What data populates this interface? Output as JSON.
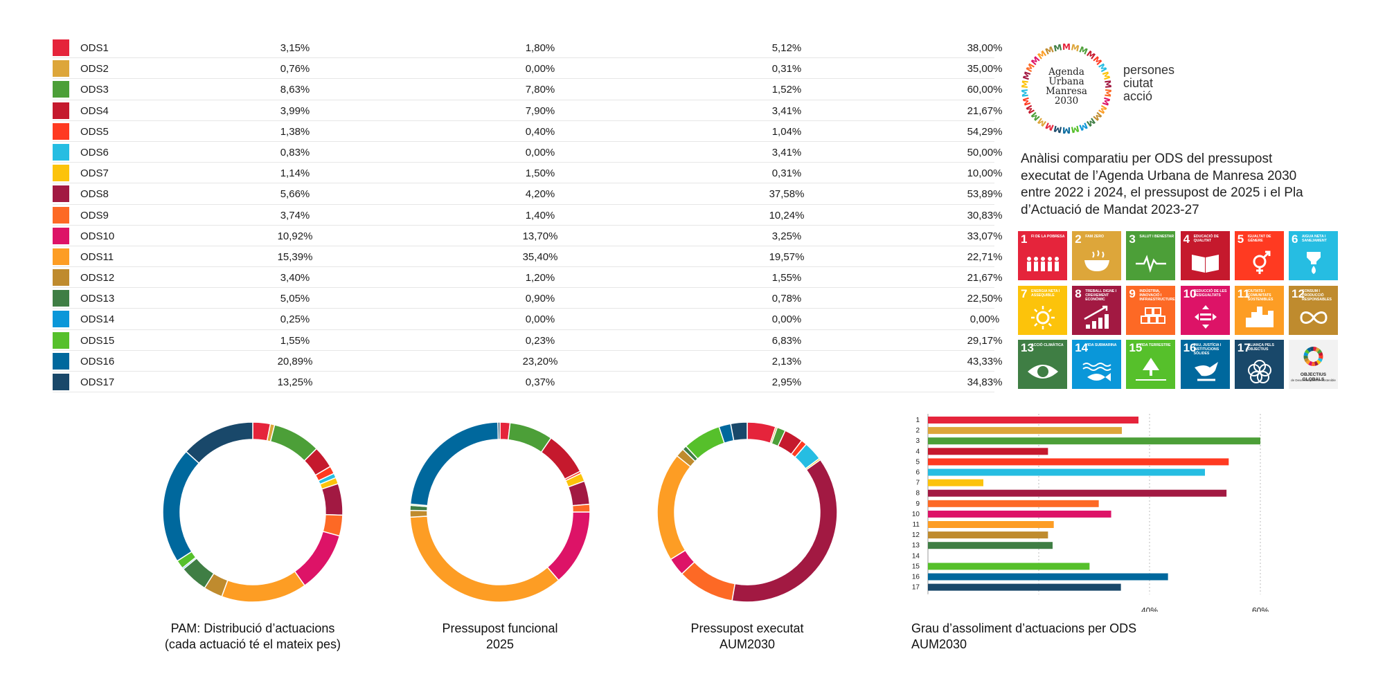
{
  "ods": [
    {
      "id": "ODS1",
      "color": "#E5243B",
      "pam": "3,15%",
      "funcional": "1,80%",
      "executat": "5,12%",
      "grau": "38,00%"
    },
    {
      "id": "ODS2",
      "color": "#DDA63A",
      "pam": "0,76%",
      "funcional": "0,00%",
      "executat": "0,31%",
      "grau": "35,00%"
    },
    {
      "id": "ODS3",
      "color": "#4C9F38",
      "pam": "8,63%",
      "funcional": "7,80%",
      "executat": "1,52%",
      "grau": "60,00%"
    },
    {
      "id": "ODS4",
      "color": "#C5192D",
      "pam": "3,99%",
      "funcional": "7,90%",
      "executat": "3,41%",
      "grau": "21,67%"
    },
    {
      "id": "ODS5",
      "color": "#FF3A21",
      "pam": "1,38%",
      "funcional": "0,40%",
      "executat": "1,04%",
      "grau": "54,29%"
    },
    {
      "id": "ODS6",
      "color": "#26BDE2",
      "pam": "0,83%",
      "funcional": "0,00%",
      "executat": "3,41%",
      "grau": "50,00%"
    },
    {
      "id": "ODS7",
      "color": "#FCC30B",
      "pam": "1,14%",
      "funcional": "1,50%",
      "executat": "0,31%",
      "grau": "10,00%"
    },
    {
      "id": "ODS8",
      "color": "#A21942",
      "pam": "5,66%",
      "funcional": "4,20%",
      "executat": "37,58%",
      "grau": "53,89%"
    },
    {
      "id": "ODS9",
      "color": "#FD6925",
      "pam": "3,74%",
      "funcional": "1,40%",
      "executat": "10,24%",
      "grau": "30,83%"
    },
    {
      "id": "ODS10",
      "color": "#DD1367",
      "pam": "10,92%",
      "funcional": "13,70%",
      "executat": "3,25%",
      "grau": "33,07%"
    },
    {
      "id": "ODS11",
      "color": "#FD9D24",
      "pam": "15,39%",
      "funcional": "35,40%",
      "executat": "19,57%",
      "grau": "22,71%"
    },
    {
      "id": "ODS12",
      "color": "#BF8B2E",
      "pam": "3,40%",
      "funcional": "1,20%",
      "executat": "1,55%",
      "grau": "21,67%"
    },
    {
      "id": "ODS13",
      "color": "#3F7E44",
      "pam": "5,05%",
      "funcional": "0,90%",
      "executat": "0,78%",
      "grau": "22,50%"
    },
    {
      "id": "ODS14",
      "color": "#0A97D9",
      "pam": "0,25%",
      "funcional": "0,00%",
      "executat": "0,00%",
      "grau": "0,00%"
    },
    {
      "id": "ODS15",
      "color": "#56C02B",
      "pam": "1,55%",
      "funcional": "0,23%",
      "executat": "6,83%",
      "grau": "29,17%"
    },
    {
      "id": "ODS16",
      "color": "#00689D",
      "pam": "20,89%",
      "funcional": "23,20%",
      "executat": "2,13%",
      "grau": "43,33%"
    },
    {
      "id": "ODS17",
      "color": "#19486A",
      "pam": "13,25%",
      "funcional": "0,37%",
      "executat": "2,95%",
      "grau": "34,83%"
    }
  ],
  "logo": {
    "lines": [
      "Agenda",
      "Urbana",
      "Manresa",
      "2030"
    ],
    "ring_letter": "M"
  },
  "tagline": [
    "persones",
    "ciutat",
    "acció"
  ],
  "description": "Anàlisi comparatiu per ODS del pressupost executat de l’Agenda Urbana de Manresa 2030 entre 2022 i 2024, el pressupost de 2025 i el Pla d’Actuació de Mandat 2023-27",
  "sdg_tiles": [
    {
      "n": "1",
      "label": "Fi de la pobresa",
      "color": "#E5243B",
      "icon": "people-icon"
    },
    {
      "n": "2",
      "label": "Fam zero",
      "color": "#DDA63A",
      "icon": "bowl-icon"
    },
    {
      "n": "3",
      "label": "Salut i benestar",
      "color": "#4C9F38",
      "icon": "heartbeat-icon"
    },
    {
      "n": "4",
      "label": "Educació de qualitat",
      "color": "#C5192D",
      "icon": "book-icon"
    },
    {
      "n": "5",
      "label": "Igualtat de gènere",
      "color": "#FF3A21",
      "icon": "gender-icon"
    },
    {
      "n": "6",
      "label": "Aigua neta i sanejament",
      "color": "#26BDE2",
      "icon": "water-drop-icon"
    },
    {
      "n": "7",
      "label": "Energia neta i assequible",
      "color": "#FCC30B",
      "icon": "sun-icon"
    },
    {
      "n": "8",
      "label": "Treball digne i creixement econòmic",
      "color": "#A21942",
      "icon": "growth-chart-icon"
    },
    {
      "n": "9",
      "label": "Indústria, innovació i infraestructures",
      "color": "#FD6925",
      "icon": "cubes-icon"
    },
    {
      "n": "10",
      "label": "Reducció de les desigualtats",
      "color": "#DD1367",
      "icon": "equality-icon"
    },
    {
      "n": "11",
      "label": "Ciutats i comunitats sostenibles",
      "color": "#FD9D24",
      "icon": "buildings-icon"
    },
    {
      "n": "12",
      "label": "Consum i producció responsables",
      "color": "#BF8B2E",
      "icon": "infinity-icon"
    },
    {
      "n": "13",
      "label": "Acció climàtica",
      "color": "#3F7E44",
      "icon": "eye-globe-icon"
    },
    {
      "n": "14",
      "label": "Vida submarina",
      "color": "#0A97D9",
      "icon": "fish-icon"
    },
    {
      "n": "15",
      "label": "Vida terrestre",
      "color": "#56C02B",
      "icon": "tree-icon"
    },
    {
      "n": "16",
      "label": "Pau, justícia i institucions sòlides",
      "color": "#00689D",
      "icon": "dove-icon"
    },
    {
      "n": "17",
      "label": "Aliança pels objectius",
      "color": "#19486A",
      "icon": "flower-icon"
    }
  ],
  "sdg_logo": {
    "title": "OBJECTIUS GLOBALS",
    "subtitle": "de Desenvolupament Sostenible"
  },
  "chart_data": [
    {
      "type": "pie",
      "title": "PAM: Distribució d’actuacions\n(cada actuació té el mateix pes)",
      "title_lines": [
        "PAM: Distribució d’actuacions",
        "(cada actuació té el mateix pes)"
      ],
      "categories": [
        "ODS1",
        "ODS2",
        "ODS3",
        "ODS4",
        "ODS5",
        "ODS6",
        "ODS7",
        "ODS8",
        "ODS9",
        "ODS10",
        "ODS11",
        "ODS12",
        "ODS13",
        "ODS14",
        "ODS15",
        "ODS16",
        "ODS17"
      ],
      "values": [
        3.15,
        0.76,
        8.63,
        3.99,
        1.38,
        0.83,
        1.14,
        5.66,
        3.74,
        10.92,
        15.39,
        3.4,
        5.05,
        0.25,
        1.55,
        20.89,
        13.25
      ],
      "style": "donut"
    },
    {
      "type": "pie",
      "title": "Pressupost funcional\n2025",
      "title_lines": [
        "Pressupost funcional",
        "2025"
      ],
      "categories": [
        "ODS1",
        "ODS2",
        "ODS3",
        "ODS4",
        "ODS5",
        "ODS6",
        "ODS7",
        "ODS8",
        "ODS9",
        "ODS10",
        "ODS11",
        "ODS12",
        "ODS13",
        "ODS14",
        "ODS15",
        "ODS16",
        "ODS17"
      ],
      "values": [
        1.8,
        0.0,
        7.8,
        7.9,
        0.4,
        0.0,
        1.5,
        4.2,
        1.4,
        13.7,
        35.4,
        1.2,
        0.9,
        0.0,
        0.23,
        23.2,
        0.37
      ],
      "style": "donut"
    },
    {
      "type": "pie",
      "title": "Pressupost executat\nAUM2030",
      "title_lines": [
        "Pressupost executat",
        "AUM2030"
      ],
      "categories": [
        "ODS1",
        "ODS2",
        "ODS3",
        "ODS4",
        "ODS5",
        "ODS6",
        "ODS7",
        "ODS8",
        "ODS9",
        "ODS10",
        "ODS11",
        "ODS12",
        "ODS13",
        "ODS14",
        "ODS15",
        "ODS16",
        "ODS17"
      ],
      "values": [
        5.12,
        0.31,
        1.52,
        3.41,
        1.04,
        3.41,
        0.31,
        37.58,
        10.24,
        3.25,
        19.57,
        1.55,
        0.78,
        0.0,
        6.83,
        2.13,
        2.95
      ],
      "style": "donut"
    },
    {
      "type": "bar",
      "orientation": "horizontal",
      "title": "Grau d’assoliment d’actuacions per ODS\nAUM2030",
      "title_lines": [
        "Grau d’assoliment d’actuacions per ODS",
        "AUM2030"
      ],
      "categories": [
        "1",
        "2",
        "3",
        "4",
        "5",
        "6",
        "7",
        "8",
        "9",
        "10",
        "11",
        "12",
        "13",
        "14",
        "15",
        "16",
        "17"
      ],
      "values": [
        38.0,
        35.0,
        60.0,
        21.67,
        54.29,
        50.0,
        10.0,
        53.89,
        30.83,
        33.07,
        22.71,
        21.67,
        22.5,
        0.0,
        29.17,
        43.33,
        34.83
      ],
      "xlim": [
        0,
        60
      ],
      "xticks": [
        40,
        60
      ],
      "xtick_labels": [
        "40%",
        "60%"
      ],
      "grid": true
    }
  ]
}
